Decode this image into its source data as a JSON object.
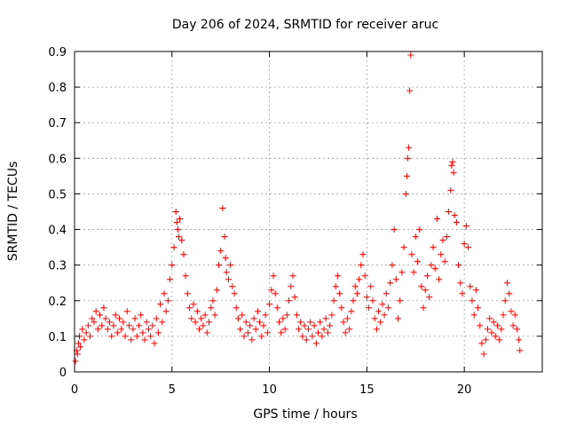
{
  "chart_data": {
    "type": "scatter",
    "title": "Day 206 of 2024, SRMTID for receiver aruc",
    "xlabel": "GPS time / hours",
    "ylabel": "SRMTID / TECUs",
    "xlim": [
      0,
      24
    ],
    "ylim": [
      0,
      0.9
    ],
    "xticks": [
      0,
      5,
      10,
      15,
      20
    ],
    "xtick_labels": [
      "0",
      "5",
      "10",
      "15",
      "20"
    ],
    "yticks": [
      0,
      0.1,
      0.2,
      0.3,
      0.4,
      0.5,
      0.6,
      0.7,
      0.8,
      0.9
    ],
    "ytick_labels": [
      "0",
      "0.1",
      "0.2",
      "0.3",
      "0.4",
      "0.5",
      "0.6",
      "0.7",
      "0.8",
      "0.9"
    ],
    "grid": true,
    "marker": "+",
    "color": "#ff0000",
    "series": [
      {
        "name": "SRMTID",
        "points": [
          [
            0.05,
            0.03
          ],
          [
            0.1,
            0.06
          ],
          [
            0.15,
            0.05
          ],
          [
            0.2,
            0.08
          ],
          [
            0.25,
            0.1
          ],
          [
            0.3,
            0.07
          ],
          [
            0.4,
            0.12
          ],
          [
            0.5,
            0.09
          ],
          [
            0.6,
            0.11
          ],
          [
            0.7,
            0.13
          ],
          [
            0.8,
            0.1
          ],
          [
            0.9,
            0.15
          ],
          [
            1.0,
            0.14
          ],
          [
            1.1,
            0.17
          ],
          [
            1.2,
            0.12
          ],
          [
            1.3,
            0.16
          ],
          [
            1.4,
            0.13
          ],
          [
            1.5,
            0.18
          ],
          [
            1.6,
            0.15
          ],
          [
            1.7,
            0.12
          ],
          [
            1.8,
            0.14
          ],
          [
            1.9,
            0.1
          ],
          [
            2.0,
            0.13
          ],
          [
            2.1,
            0.16
          ],
          [
            2.2,
            0.11
          ],
          [
            2.3,
            0.15
          ],
          [
            2.4,
            0.12
          ],
          [
            2.5,
            0.14
          ],
          [
            2.6,
            0.1
          ],
          [
            2.7,
            0.17
          ],
          [
            2.8,
            0.13
          ],
          [
            2.9,
            0.09
          ],
          [
            3.0,
            0.12
          ],
          [
            3.1,
            0.15
          ],
          [
            3.2,
            0.1
          ],
          [
            3.3,
            0.13
          ],
          [
            3.4,
            0.16
          ],
          [
            3.5,
            0.11
          ],
          [
            3.6,
            0.09
          ],
          [
            3.7,
            0.14
          ],
          [
            3.8,
            0.12
          ],
          [
            3.9,
            0.1
          ],
          [
            4.0,
            0.13
          ],
          [
            4.1,
            0.08
          ],
          [
            4.2,
            0.15
          ],
          [
            4.3,
            0.11
          ],
          [
            4.4,
            0.19
          ],
          [
            4.5,
            0.14
          ],
          [
            4.6,
            0.22
          ],
          [
            4.7,
            0.17
          ],
          [
            4.8,
            0.2
          ],
          [
            4.9,
            0.26
          ],
          [
            5.0,
            0.3
          ],
          [
            5.1,
            0.35
          ],
          [
            5.2,
            0.45
          ],
          [
            5.25,
            0.42
          ],
          [
            5.3,
            0.4
          ],
          [
            5.35,
            0.38
          ],
          [
            5.4,
            0.43
          ],
          [
            5.5,
            0.37
          ],
          [
            5.6,
            0.33
          ],
          [
            5.7,
            0.27
          ],
          [
            5.8,
            0.22
          ],
          [
            5.9,
            0.18
          ],
          [
            6.0,
            0.15
          ],
          [
            6.1,
            0.19
          ],
          [
            6.2,
            0.14
          ],
          [
            6.3,
            0.17
          ],
          [
            6.4,
            0.12
          ],
          [
            6.5,
            0.15
          ],
          [
            6.6,
            0.13
          ],
          [
            6.7,
            0.16
          ],
          [
            6.8,
            0.11
          ],
          [
            6.9,
            0.14
          ],
          [
            7.0,
            0.18
          ],
          [
            7.1,
            0.2
          ],
          [
            7.2,
            0.16
          ],
          [
            7.3,
            0.23
          ],
          [
            7.4,
            0.3
          ],
          [
            7.5,
            0.34
          ],
          [
            7.6,
            0.46
          ],
          [
            7.7,
            0.38
          ],
          [
            7.75,
            0.32
          ],
          [
            7.8,
            0.28
          ],
          [
            7.9,
            0.26
          ],
          [
            8.0,
            0.3
          ],
          [
            8.1,
            0.24
          ],
          [
            8.2,
            0.22
          ],
          [
            8.3,
            0.18
          ],
          [
            8.4,
            0.15
          ],
          [
            8.5,
            0.12
          ],
          [
            8.6,
            0.16
          ],
          [
            8.7,
            0.1
          ],
          [
            8.8,
            0.14
          ],
          [
            8.9,
            0.11
          ],
          [
            9.0,
            0.13
          ],
          [
            9.1,
            0.09
          ],
          [
            9.2,
            0.15
          ],
          [
            9.3,
            0.12
          ],
          [
            9.4,
            0.17
          ],
          [
            9.5,
            0.14
          ],
          [
            9.6,
            0.1
          ],
          [
            9.7,
            0.13
          ],
          [
            9.8,
            0.16
          ],
          [
            9.9,
            0.11
          ],
          [
            10.0,
            0.19
          ],
          [
            10.1,
            0.23
          ],
          [
            10.2,
            0.27
          ],
          [
            10.3,
            0.22
          ],
          [
            10.4,
            0.18
          ],
          [
            10.5,
            0.14
          ],
          [
            10.6,
            0.11
          ],
          [
            10.7,
            0.15
          ],
          [
            10.8,
            0.12
          ],
          [
            10.9,
            0.16
          ],
          [
            11.0,
            0.2
          ],
          [
            11.1,
            0.24
          ],
          [
            11.2,
            0.27
          ],
          [
            11.3,
            0.21
          ],
          [
            11.4,
            0.16
          ],
          [
            11.5,
            0.12
          ],
          [
            11.6,
            0.14
          ],
          [
            11.7,
            0.1
          ],
          [
            11.8,
            0.13
          ],
          [
            11.9,
            0.09
          ],
          [
            12.0,
            0.12
          ],
          [
            12.1,
            0.14
          ],
          [
            12.2,
            0.1
          ],
          [
            12.3,
            0.13
          ],
          [
            12.4,
            0.08
          ],
          [
            12.5,
            0.11
          ],
          [
            12.6,
            0.14
          ],
          [
            12.7,
            0.1
          ],
          [
            12.8,
            0.12
          ],
          [
            12.9,
            0.15
          ],
          [
            13.0,
            0.11
          ],
          [
            13.1,
            0.13
          ],
          [
            13.2,
            0.16
          ],
          [
            13.3,
            0.2
          ],
          [
            13.4,
            0.24
          ],
          [
            13.5,
            0.27
          ],
          [
            13.6,
            0.22
          ],
          [
            13.7,
            0.18
          ],
          [
            13.8,
            0.14
          ],
          [
            13.9,
            0.11
          ],
          [
            14.0,
            0.15
          ],
          [
            14.1,
            0.12
          ],
          [
            14.2,
            0.17
          ],
          [
            14.3,
            0.2
          ],
          [
            14.4,
            0.24
          ],
          [
            14.5,
            0.22
          ],
          [
            14.6,
            0.26
          ],
          [
            14.7,
            0.3
          ],
          [
            14.8,
            0.33
          ],
          [
            14.9,
            0.27
          ],
          [
            15.0,
            0.21
          ],
          [
            15.1,
            0.18
          ],
          [
            15.2,
            0.24
          ],
          [
            15.3,
            0.2
          ],
          [
            15.4,
            0.15
          ],
          [
            15.5,
            0.12
          ],
          [
            15.6,
            0.17
          ],
          [
            15.7,
            0.14
          ],
          [
            15.8,
            0.19
          ],
          [
            15.9,
            0.16
          ],
          [
            16.0,
            0.22
          ],
          [
            16.1,
            0.18
          ],
          [
            16.2,
            0.25
          ],
          [
            16.3,
            0.3
          ],
          [
            16.4,
            0.4
          ],
          [
            16.5,
            0.26
          ],
          [
            16.6,
            0.15
          ],
          [
            16.7,
            0.2
          ],
          [
            16.8,
            0.28
          ],
          [
            16.9,
            0.35
          ],
          [
            17.0,
            0.5
          ],
          [
            17.05,
            0.55
          ],
          [
            17.1,
            0.6
          ],
          [
            17.15,
            0.63
          ],
          [
            17.2,
            0.79
          ],
          [
            17.25,
            0.89
          ],
          [
            17.3,
            0.33
          ],
          [
            17.4,
            0.28
          ],
          [
            17.5,
            0.38
          ],
          [
            17.6,
            0.31
          ],
          [
            17.7,
            0.4
          ],
          [
            17.8,
            0.24
          ],
          [
            17.9,
            0.18
          ],
          [
            18.0,
            0.23
          ],
          [
            18.1,
            0.27
          ],
          [
            18.2,
            0.21
          ],
          [
            18.3,
            0.3
          ],
          [
            18.4,
            0.35
          ],
          [
            18.5,
            0.29
          ],
          [
            18.6,
            0.43
          ],
          [
            18.7,
            0.26
          ],
          [
            18.8,
            0.33
          ],
          [
            18.9,
            0.37
          ],
          [
            19.0,
            0.31
          ],
          [
            19.1,
            0.38
          ],
          [
            19.2,
            0.45
          ],
          [
            19.3,
            0.51
          ],
          [
            19.35,
            0.58
          ],
          [
            19.4,
            0.59
          ],
          [
            19.45,
            0.56
          ],
          [
            19.5,
            0.44
          ],
          [
            19.6,
            0.42
          ],
          [
            19.7,
            0.3
          ],
          [
            19.8,
            0.25
          ],
          [
            19.9,
            0.22
          ],
          [
            20.0,
            0.36
          ],
          [
            20.1,
            0.41
          ],
          [
            20.2,
            0.35
          ],
          [
            20.3,
            0.24
          ],
          [
            20.4,
            0.2
          ],
          [
            20.5,
            0.16
          ],
          [
            20.6,
            0.23
          ],
          [
            20.7,
            0.18
          ],
          [
            20.8,
            0.13
          ],
          [
            20.9,
            0.08
          ],
          [
            21.0,
            0.05
          ],
          [
            21.1,
            0.09
          ],
          [
            21.2,
            0.12
          ],
          [
            21.3,
            0.15
          ],
          [
            21.4,
            0.11
          ],
          [
            21.5,
            0.14
          ],
          [
            21.6,
            0.1
          ],
          [
            21.7,
            0.13
          ],
          [
            21.8,
            0.09
          ],
          [
            21.9,
            0.12
          ],
          [
            22.0,
            0.16
          ],
          [
            22.1,
            0.2
          ],
          [
            22.2,
            0.25
          ],
          [
            22.3,
            0.22
          ],
          [
            22.4,
            0.17
          ],
          [
            22.5,
            0.13
          ],
          [
            22.6,
            0.16
          ],
          [
            22.7,
            0.12
          ],
          [
            22.8,
            0.09
          ],
          [
            22.85,
            0.06
          ]
        ]
      }
    ]
  }
}
